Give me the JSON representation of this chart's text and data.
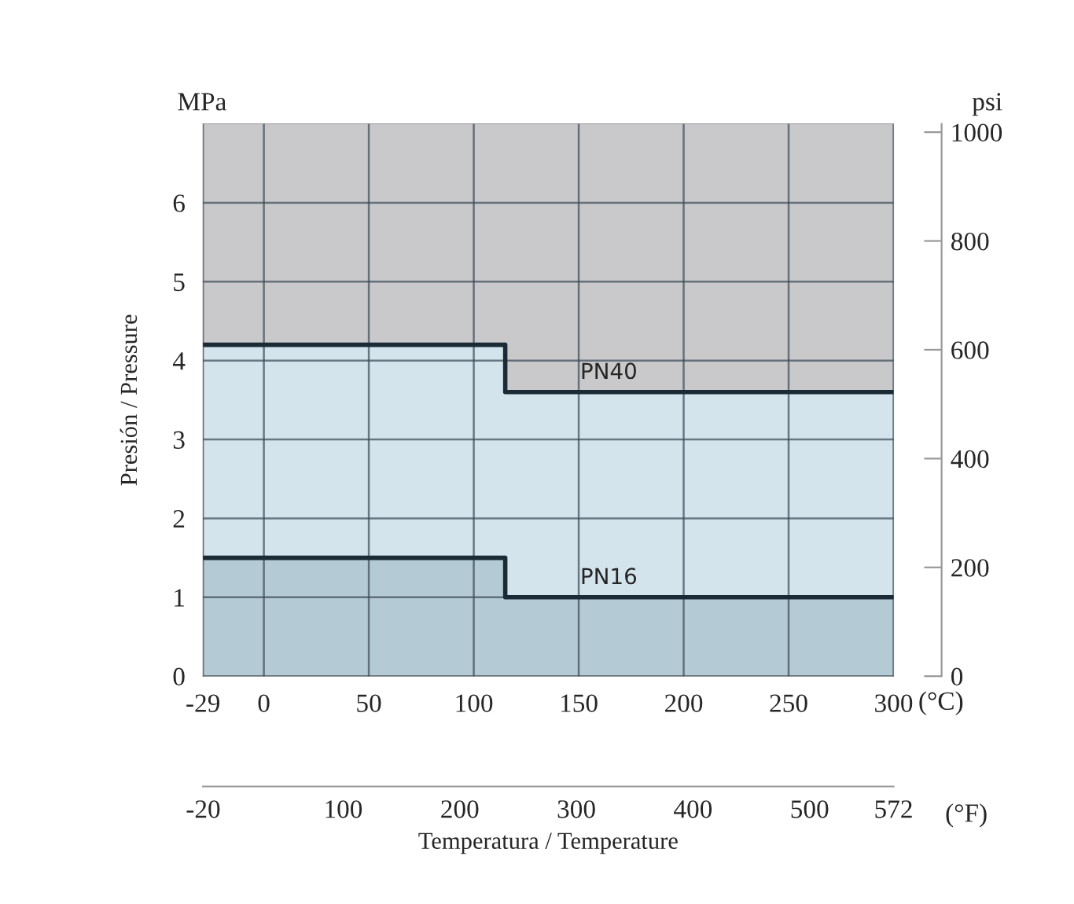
{
  "chart_data": {
    "type": "area",
    "xlim": [
      -29,
      300
    ],
    "xticks": [
      -29,
      0,
      50,
      100,
      150,
      200,
      250,
      300
    ],
    "ylim": [
      0,
      7
    ],
    "yticks": [
      0,
      1,
      2,
      3,
      4,
      5,
      6
    ],
    "y2lim": [
      0,
      1015.3
    ],
    "y2ticks": [
      0,
      200,
      400,
      600,
      800,
      1000
    ],
    "x2lim": [
      -20.2,
      572
    ],
    "x2ticks": [
      -20,
      100,
      200,
      300,
      400,
      500,
      572
    ],
    "x2label": "Temperatura / Temperature",
    "ylabel": "Presión / Pressure",
    "series": [
      {
        "color": "#d3e4ec",
        "x": [
          -29,
          115,
          300
        ],
        "values": [
          4.2,
          3.6,
          3.6
        ]
      },
      {
        "color": "#b4cad5",
        "x": [
          -29,
          115,
          300
        ],
        "values": [
          1.5,
          1.0,
          1.0
        ]
      },
      {
        "type": "step",
        "name": "PN40",
        "color": "#1b2b36",
        "x": [
          -29,
          115,
          300
        ],
        "values": [
          4.2,
          3.6,
          3.6
        ]
      },
      {
        "type": "step",
        "name": "PN16",
        "color": "#1b2b36",
        "x": [
          -29,
          115,
          300
        ],
        "values": [
          1.5,
          1.0,
          1.0
        ]
      }
    ],
    "grid": true,
    "annotations": [
      "MPa",
      "psi",
      "(°C)",
      "(°F)"
    ]
  }
}
